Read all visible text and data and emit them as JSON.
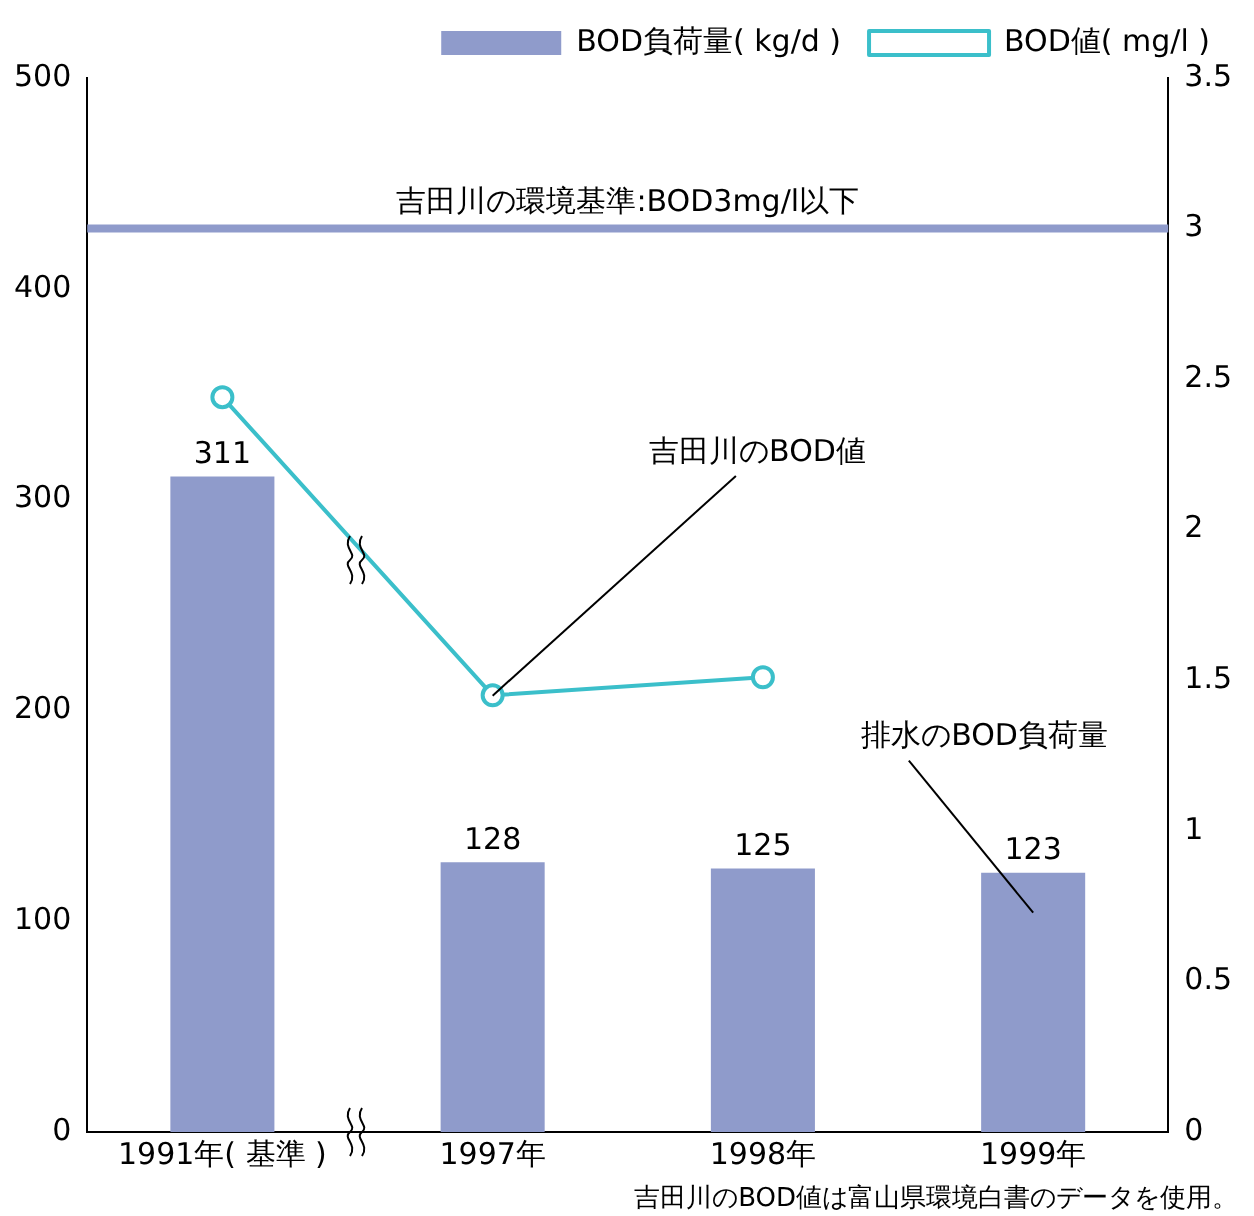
{
  "chart_data": {
    "type": "bar",
    "categories": [
      "1991年( 基準 )",
      "1997年",
      "1998年",
      "1999年"
    ],
    "series": [
      {
        "name": "BOD負荷量( kg/d )",
        "color": "#8f9bcb",
        "values": [
          311,
          128,
          125,
          123
        ],
        "value_labels": [
          "311",
          "128",
          "125",
          "123"
        ]
      },
      {
        "name": "BOD値( mg/l )",
        "type": "line",
        "axis": "y2",
        "color": "#3bbfca",
        "values": [
          2.44,
          1.45,
          1.51,
          null
        ],
        "marker": "circle"
      }
    ],
    "ylim": [
      0,
      500
    ],
    "yticks": [
      0,
      100,
      200,
      300,
      400,
      500
    ],
    "y2lim": [
      0,
      3.5
    ],
    "y2ticks": [
      0,
      0.5,
      1,
      1.5,
      2,
      2.5,
      3,
      3.5
    ],
    "ref_lines": [
      {
        "axis": "y2",
        "value": 3,
        "label": "吉田川の環境基準:BOD3mg/l以下",
        "color": "#8f9bcb"
      }
    ],
    "annotations": [
      {
        "text": "吉田川のBOD値",
        "x": "1997年",
        "y": 207
      },
      "排水のBOD負荷量",
      "吉田川のBOD値は富山県環境白書のデータを使用。"
    ],
    "grid": false,
    "legend": "top right"
  }
}
